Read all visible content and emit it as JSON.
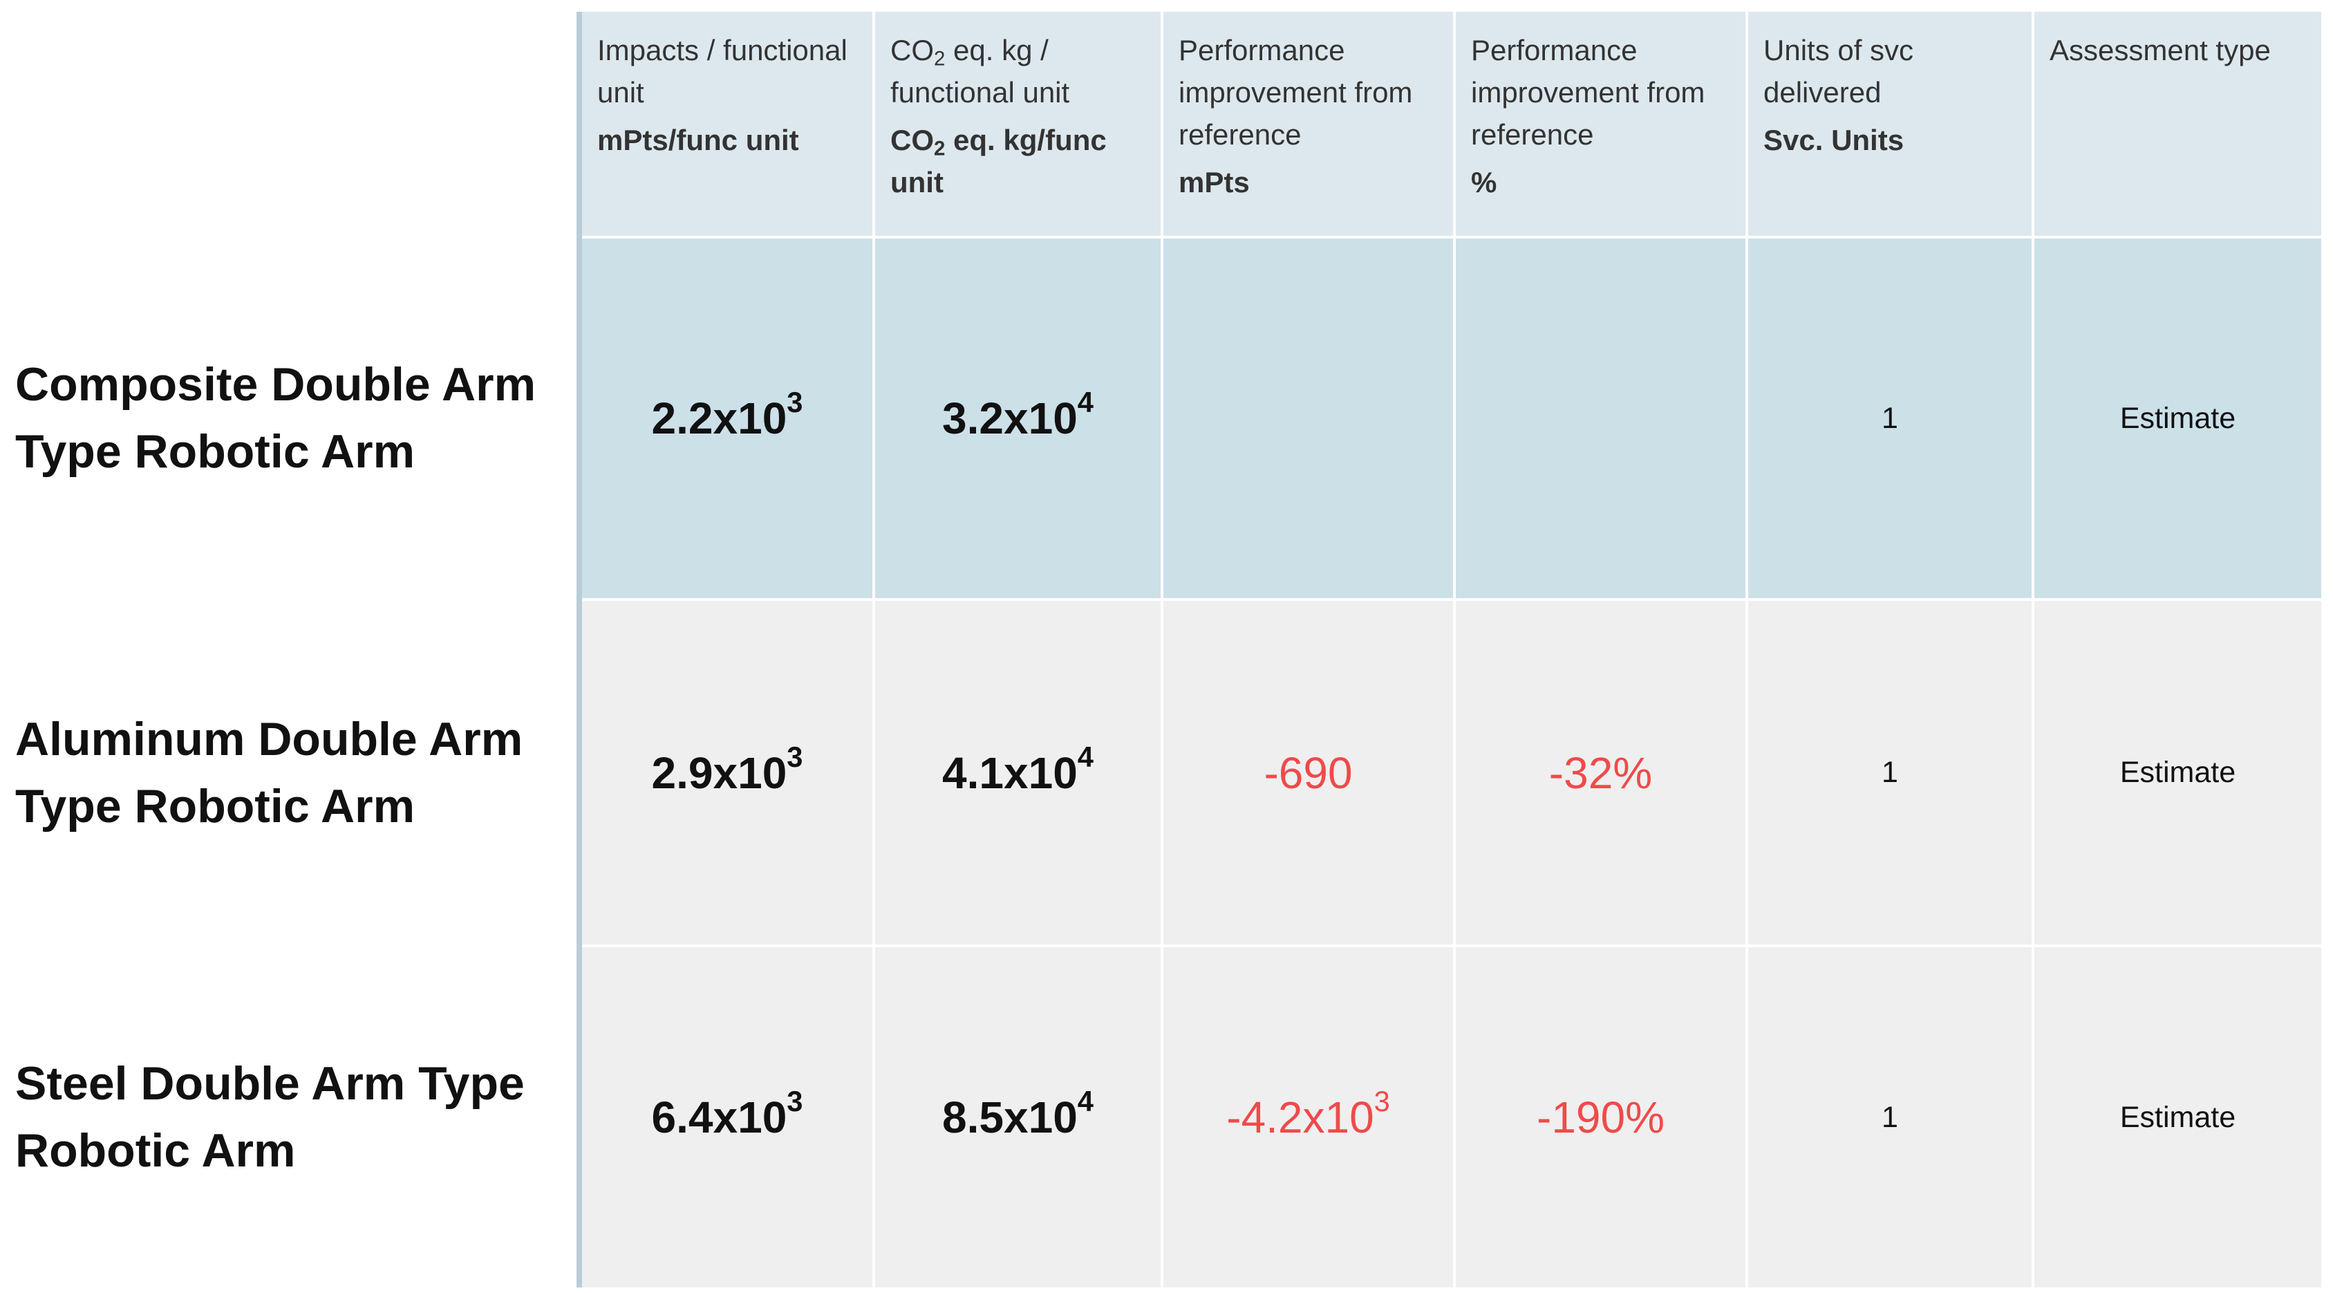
{
  "table": {
    "columns": [
      {
        "title": "Impacts / functional unit",
        "unit": "mPts/func unit"
      },
      {
        "title": {
          "pre": "CO",
          "sub": "2",
          "post": " eq. kg / functional unit"
        },
        "unit": {
          "pre": "CO",
          "sub": "2",
          "post": " eq. kg/func unit"
        }
      },
      {
        "title": "Performance improvement from reference",
        "unit": "mPts"
      },
      {
        "title": "Performance improvement from reference",
        "unit": "%"
      },
      {
        "title": "Units of svc delivered",
        "unit": "Svc. Units"
      },
      {
        "title": "Assessment type",
        "unit": null
      }
    ],
    "rows": [
      {
        "label": "Composite Double Arm Type Robotic Arm",
        "cells": [
          {
            "base": "2.2x10",
            "sup": "3"
          },
          {
            "base": "3.2x10",
            "sup": "4"
          },
          null,
          null,
          "1",
          "Estimate"
        ]
      },
      {
        "label": "Aluminum Double Arm Type Robotic Arm",
        "cells": [
          {
            "base": "2.9x10",
            "sup": "3"
          },
          {
            "base": "4.1x10",
            "sup": "4"
          },
          "-690",
          "-32%",
          "1",
          "Estimate"
        ]
      },
      {
        "label": "Steel Double Arm Type Robotic Arm",
        "cells": [
          {
            "base": "6.4x10",
            "sup": "3"
          },
          {
            "base": "8.5x10",
            "sup": "4"
          },
          {
            "base": "-4.2x10",
            "sup": "3"
          },
          "-190%",
          "1",
          "Estimate"
        ]
      }
    ]
  }
}
